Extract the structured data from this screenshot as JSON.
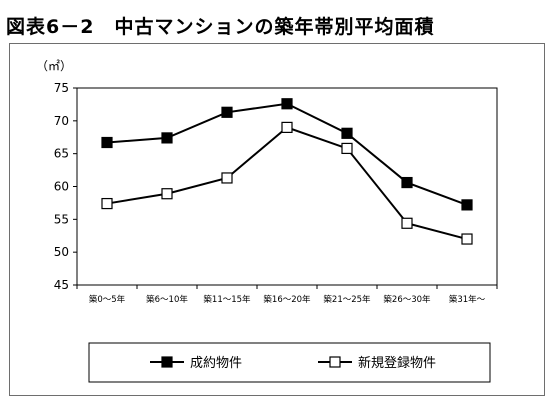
{
  "figure_title": "図表6－2　中古マンションの築年帯別平均面積",
  "chart_data": {
    "type": "line",
    "ylabel": "（㎡）",
    "ylim": [
      45,
      75
    ],
    "yticks": [
      45,
      50,
      55,
      60,
      65,
      70,
      75
    ],
    "grid": false,
    "legend_position": "bottom",
    "categories": [
      "築0～5年",
      "築6～10年",
      "築11～15年",
      "築16～20年",
      "築21～25年",
      "築26～30年",
      "築31年～"
    ],
    "series": [
      {
        "name": "成約物件",
        "marker": "filled-square",
        "color": "#000000",
        "values": [
          66.7,
          67.4,
          71.3,
          72.6,
          68.1,
          60.6,
          57.2
        ]
      },
      {
        "name": "新規登録物件",
        "marker": "open-square",
        "color": "#000000",
        "values": [
          57.4,
          58.9,
          61.3,
          69.0,
          65.8,
          54.4,
          52.0
        ]
      }
    ]
  }
}
